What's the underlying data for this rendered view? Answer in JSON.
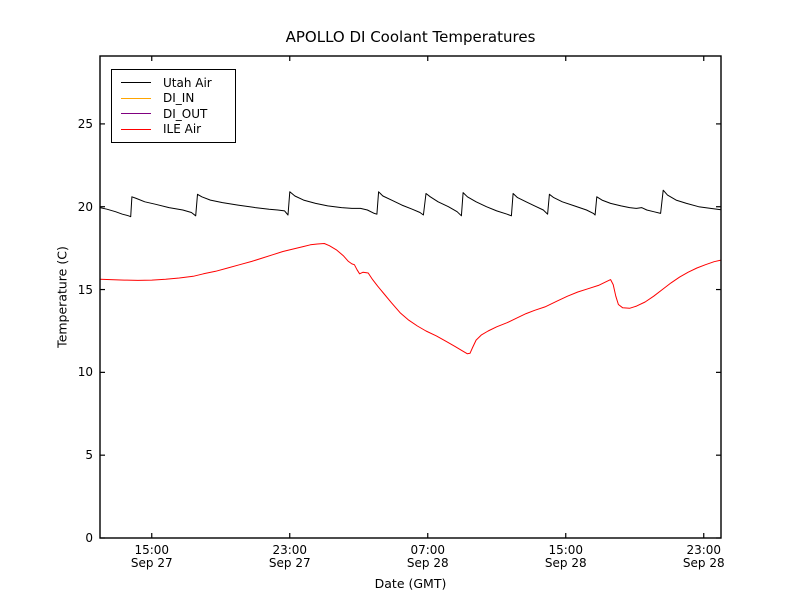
{
  "figure": {
    "background": "#ffffff",
    "frame_color": "#000000"
  },
  "chart_data": {
    "type": "line",
    "title": "APOLLO DI Coolant Temperatures",
    "xlabel": "Date (GMT)",
    "ylabel": "Temperature (C)",
    "grid": false,
    "x_axis_note": "x values are hours after 12:00 GMT Sep 27",
    "xlim": [
      0,
      36
    ],
    "ylim": [
      0,
      29.1
    ],
    "y_ticks": [
      0,
      5,
      10,
      15,
      20,
      25
    ],
    "x_ticks": [
      {
        "x": 3,
        "time": "15:00",
        "date": "Sep 27"
      },
      {
        "x": 11,
        "time": "23:00",
        "date": "Sep 27"
      },
      {
        "x": 19,
        "time": "07:00",
        "date": "Sep 28"
      },
      {
        "x": 27,
        "time": "15:00",
        "date": "Sep 28"
      },
      {
        "x": 35,
        "time": "23:00",
        "date": "Sep 28"
      }
    ],
    "legend": {
      "position": "upper-left",
      "entries": [
        "Utah Air",
        "DI_IN",
        "DI_OUT",
        "ILE Air"
      ]
    },
    "series": [
      {
        "name": "Utah Air",
        "color": "#000000",
        "points": [
          [
            0,
            19.95
          ],
          [
            0.4,
            19.85
          ],
          [
            0.9,
            19.7
          ],
          [
            1.3,
            19.55
          ],
          [
            1.65,
            19.45
          ],
          [
            1.78,
            19.4
          ],
          [
            1.85,
            20.6
          ],
          [
            2.1,
            20.5
          ],
          [
            2.6,
            20.3
          ],
          [
            3.2,
            20.15
          ],
          [
            4.0,
            19.95
          ],
          [
            4.8,
            19.8
          ],
          [
            5.3,
            19.65
          ],
          [
            5.55,
            19.45
          ],
          [
            5.65,
            20.75
          ],
          [
            5.9,
            20.6
          ],
          [
            6.4,
            20.4
          ],
          [
            7.1,
            20.25
          ],
          [
            8.0,
            20.1
          ],
          [
            9.0,
            19.95
          ],
          [
            9.8,
            19.85
          ],
          [
            10.3,
            19.8
          ],
          [
            10.7,
            19.75
          ],
          [
            10.9,
            19.5
          ],
          [
            11.0,
            20.9
          ],
          [
            11.3,
            20.65
          ],
          [
            11.8,
            20.4
          ],
          [
            12.5,
            20.2
          ],
          [
            13.2,
            20.05
          ],
          [
            14.0,
            19.95
          ],
          [
            14.6,
            19.9
          ],
          [
            15.1,
            19.9
          ],
          [
            15.5,
            19.8
          ],
          [
            15.9,
            19.6
          ],
          [
            16.05,
            19.55
          ],
          [
            16.15,
            20.9
          ],
          [
            16.4,
            20.65
          ],
          [
            16.9,
            20.4
          ],
          [
            17.5,
            20.1
          ],
          [
            18.1,
            19.85
          ],
          [
            18.55,
            19.65
          ],
          [
            18.75,
            19.5
          ],
          [
            18.9,
            20.8
          ],
          [
            19.15,
            20.6
          ],
          [
            19.6,
            20.3
          ],
          [
            20.2,
            20.0
          ],
          [
            20.7,
            19.7
          ],
          [
            20.95,
            19.45
          ],
          [
            21.05,
            20.85
          ],
          [
            21.3,
            20.6
          ],
          [
            21.8,
            20.3
          ],
          [
            22.4,
            20.0
          ],
          [
            23.0,
            19.75
          ],
          [
            23.6,
            19.55
          ],
          [
            23.85,
            19.45
          ],
          [
            23.95,
            20.8
          ],
          [
            24.2,
            20.55
          ],
          [
            24.7,
            20.3
          ],
          [
            25.2,
            20.05
          ],
          [
            25.7,
            19.8
          ],
          [
            25.95,
            19.55
          ],
          [
            26.05,
            20.75
          ],
          [
            26.3,
            20.55
          ],
          [
            26.8,
            20.3
          ],
          [
            27.5,
            20.05
          ],
          [
            28.2,
            19.8
          ],
          [
            28.6,
            19.6
          ],
          [
            28.7,
            19.5
          ],
          [
            28.8,
            20.6
          ],
          [
            29.1,
            20.4
          ],
          [
            29.6,
            20.2
          ],
          [
            30.2,
            20.05
          ],
          [
            30.7,
            19.95
          ],
          [
            31.1,
            19.9
          ],
          [
            31.4,
            19.95
          ],
          [
            31.7,
            19.8
          ],
          [
            32.1,
            19.7
          ],
          [
            32.5,
            19.6
          ],
          [
            32.65,
            21.0
          ],
          [
            32.9,
            20.7
          ],
          [
            33.4,
            20.4
          ],
          [
            34.0,
            20.2
          ],
          [
            34.7,
            20.0
          ],
          [
            35.4,
            19.9
          ],
          [
            36,
            19.82
          ]
        ]
      },
      {
        "name": "DI_IN",
        "color": "#ffa500",
        "points": []
      },
      {
        "name": "DI_OUT",
        "color": "#800080",
        "points": []
      },
      {
        "name": "ILE Air",
        "color": "#ff0000",
        "points": [
          [
            0,
            15.62
          ],
          [
            0.6,
            15.6
          ],
          [
            1.4,
            15.57
          ],
          [
            2.2,
            15.55
          ],
          [
            3.0,
            15.57
          ],
          [
            3.8,
            15.62
          ],
          [
            4.6,
            15.7
          ],
          [
            5.4,
            15.8
          ],
          [
            6.0,
            15.95
          ],
          [
            6.7,
            16.1
          ],
          [
            7.4,
            16.3
          ],
          [
            8.1,
            16.5
          ],
          [
            8.8,
            16.7
          ],
          [
            9.4,
            16.9
          ],
          [
            10.0,
            17.1
          ],
          [
            10.6,
            17.3
          ],
          [
            11.2,
            17.45
          ],
          [
            11.8,
            17.6
          ],
          [
            12.2,
            17.7
          ],
          [
            12.6,
            17.75
          ],
          [
            13.0,
            17.78
          ],
          [
            13.3,
            17.65
          ],
          [
            13.7,
            17.4
          ],
          [
            14.1,
            17.05
          ],
          [
            14.4,
            16.7
          ],
          [
            14.6,
            16.55
          ],
          [
            14.75,
            16.5
          ],
          [
            14.9,
            16.2
          ],
          [
            15.05,
            15.95
          ],
          [
            15.25,
            16.05
          ],
          [
            15.55,
            16.0
          ],
          [
            15.8,
            15.6
          ],
          [
            16.1,
            15.2
          ],
          [
            16.5,
            14.7
          ],
          [
            16.9,
            14.2
          ],
          [
            17.4,
            13.6
          ],
          [
            17.9,
            13.15
          ],
          [
            18.4,
            12.8
          ],
          [
            18.9,
            12.5
          ],
          [
            19.5,
            12.2
          ],
          [
            20.1,
            11.85
          ],
          [
            20.6,
            11.55
          ],
          [
            21.0,
            11.3
          ],
          [
            21.3,
            11.12
          ],
          [
            21.45,
            11.15
          ],
          [
            21.6,
            11.5
          ],
          [
            21.8,
            11.95
          ],
          [
            22.1,
            12.25
          ],
          [
            22.5,
            12.5
          ],
          [
            23.0,
            12.75
          ],
          [
            23.6,
            13.0
          ],
          [
            24.2,
            13.3
          ],
          [
            24.7,
            13.55
          ],
          [
            25.2,
            13.75
          ],
          [
            25.8,
            13.95
          ],
          [
            26.5,
            14.3
          ],
          [
            27.1,
            14.6
          ],
          [
            27.7,
            14.85
          ],
          [
            28.3,
            15.05
          ],
          [
            28.9,
            15.25
          ],
          [
            29.3,
            15.45
          ],
          [
            29.6,
            15.6
          ],
          [
            29.75,
            15.3
          ],
          [
            29.9,
            14.6
          ],
          [
            30.05,
            14.1
          ],
          [
            30.3,
            13.9
          ],
          [
            30.7,
            13.87
          ],
          [
            31.1,
            14.0
          ],
          [
            31.6,
            14.25
          ],
          [
            32.1,
            14.6
          ],
          [
            32.6,
            15.0
          ],
          [
            33.1,
            15.4
          ],
          [
            33.6,
            15.75
          ],
          [
            34.1,
            16.05
          ],
          [
            34.6,
            16.3
          ],
          [
            35.1,
            16.5
          ],
          [
            35.6,
            16.68
          ],
          [
            36,
            16.78
          ]
        ]
      }
    ]
  }
}
